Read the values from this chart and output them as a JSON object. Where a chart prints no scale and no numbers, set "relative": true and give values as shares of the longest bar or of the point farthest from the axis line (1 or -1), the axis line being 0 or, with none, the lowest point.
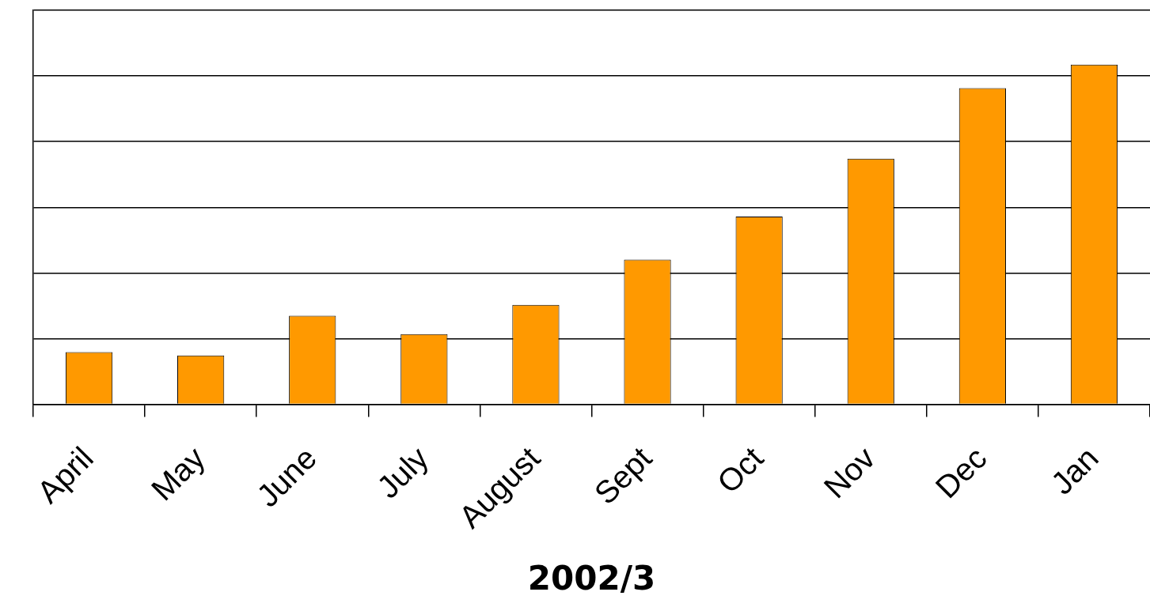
{
  "chart_data": {
    "type": "bar",
    "relative": true,
    "xlabel": "2002/3",
    "categories": [
      "April",
      "May",
      "June",
      "July",
      "August",
      "Sept",
      "Oct",
      "Nov",
      "Dec",
      "Jan"
    ],
    "values": [
      0.154,
      0.144,
      0.261,
      0.207,
      0.293,
      0.426,
      0.553,
      0.723,
      0.931,
      1
    ],
    "color": "#ff9900",
    "grid": "y"
  }
}
